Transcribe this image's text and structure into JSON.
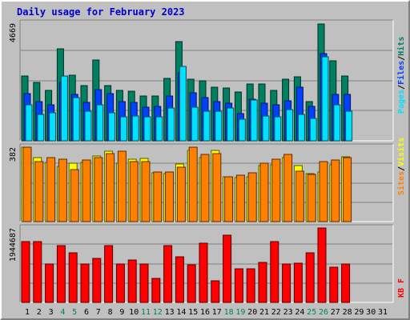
{
  "chart_data": {
    "type": "bar",
    "title": "Daily usage for February 2023",
    "days": [
      "1",
      "2",
      "3",
      "4",
      "5",
      "6",
      "7",
      "8",
      "9",
      "10",
      "11",
      "12",
      "13",
      "14",
      "15",
      "16",
      "17",
      "18",
      "19",
      "20",
      "21",
      "22",
      "23",
      "24",
      "25",
      "26",
      "27",
      "28",
      "29",
      "30",
      "31"
    ],
    "weekend_days": [
      "4",
      "5",
      "11",
      "12",
      "18",
      "19",
      "25",
      "26"
    ],
    "panels": [
      {
        "name": "hits-files-pages",
        "ymax_label": "4669",
        "ymax": 4669,
        "legend": [
          "Pages",
          "/",
          "Files",
          "/",
          "Hits"
        ],
        "legend_colors": [
          "#00e0ff",
          "#000000",
          "#0040ff",
          "#000000",
          "#008060"
        ],
        "series": [
          {
            "name": "Hits",
            "color": "#008060",
            "values": [
              2560,
              2320,
              2000,
              3660,
              2590,
              2190,
              3210,
              2190,
              2000,
              1980,
              1780,
              1780,
              2480,
              3930,
              2440,
              2370,
              2120,
              2100,
              1950,
              2260,
              2240,
              2000,
              2430,
              2550,
              1560,
              4640,
              3170,
              2580
            ]
          },
          {
            "name": "Files",
            "color": "#0040ff",
            "values": [
              1880,
              1550,
              1420,
              2320,
              1850,
              1530,
              2040,
              1880,
              1570,
              1530,
              1340,
              1350,
              1770,
              2700,
              1900,
              1700,
              1550,
              1490,
              1070,
              1640,
              1500,
              1430,
              1590,
              2130,
              1370,
              3470,
              1840,
              1850
            ]
          },
          {
            "name": "Pages",
            "color": "#00e0ff",
            "values": [
              1420,
              1050,
              1120,
              2560,
              1700,
              1170,
              1420,
              1110,
              960,
              990,
              950,
              960,
              1300,
              2940,
              1340,
              1160,
              1170,
              1300,
              870,
              1620,
              970,
              950,
              1230,
              1050,
              900,
              3340,
              1440,
              1190
            ]
          }
        ]
      },
      {
        "name": "visits-sites",
        "ymax_label": "382",
        "ymax": 382,
        "legend": [
          "Sites",
          "/",
          "Visits"
        ],
        "legend_colors": [
          "#ff8000",
          "#000000",
          "#ffff00"
        ],
        "series": [
          {
            "name": "Visits",
            "color": "#ffff00",
            "values": [
              382,
              330,
              305,
              285,
              300,
              305,
              335,
              362,
              300,
              320,
              325,
              250,
              245,
              295,
              366,
              330,
              366,
              232,
              225,
              232,
              288,
              290,
              328,
              288,
              245,
              255,
              290,
              332
            ]
          },
          {
            "name": "Sites",
            "color": "#ff8000",
            "values": [
              382,
              308,
              330,
              320,
              265,
              315,
              330,
              350,
              360,
              310,
              310,
              255,
              255,
              280,
              382,
              345,
              350,
              230,
              238,
              250,
              300,
              320,
              344,
              260,
              243,
              310,
              315,
              330
            ]
          }
        ]
      },
      {
        "name": "kbf",
        "ymax_label": "1944687",
        "ymax": 1944687,
        "legend": [
          "KB F"
        ],
        "legend_colors": [
          "#ff0000"
        ],
        "series": [
          {
            "name": "KB F",
            "color": "#ff0000",
            "values": [
              1590000,
              1590000,
              1010000,
              1490000,
              1300000,
              1010000,
              1160000,
              1490000,
              1000000,
              1100000,
              1000000,
              620000,
              1480000,
              1200000,
              990000,
              1550000,
              570000,
              1750000,
              870000,
              880000,
              1040000,
              1590000,
              1000000,
              1030000,
              1300000,
              1944687,
              910000,
              1000000
            ]
          }
        ]
      }
    ]
  }
}
